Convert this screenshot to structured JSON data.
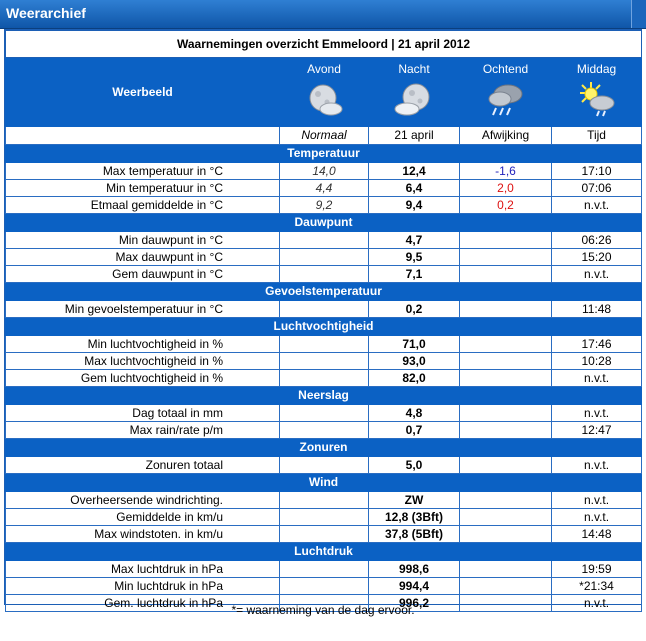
{
  "window": {
    "title": "Weerarchief"
  },
  "report": {
    "heading": "Waarnemingen overzicht Emmeloord | 21 april 2012"
  },
  "columns": {
    "weerbeeld": "Weerbeeld",
    "headers": [
      "Avond",
      "Nacht",
      "Ochtend",
      "Middag"
    ],
    "subheaders": [
      "Normaal",
      "21 april",
      "Afwijking",
      "Tijd"
    ],
    "icons": [
      "moon-cloud-icon",
      "moon-cloud-icon",
      "rain-cloud-icon",
      "sun-cloud-icon"
    ]
  },
  "sections": [
    {
      "title": "Temperatuur",
      "rows": [
        {
          "label": "Max temperatuur in °C",
          "normal": "14,0",
          "value": "12,4",
          "dev": "-1,6",
          "dev_type": "neg",
          "time": "17:10"
        },
        {
          "label": "Min temperatuur in °C",
          "normal": "4,4",
          "value": "6,4",
          "dev": "2,0",
          "dev_type": "pos",
          "time": "07:06"
        },
        {
          "label": "Etmaal gemiddelde in °C",
          "normal": "9,2",
          "value": "9,4",
          "dev": "0,2",
          "dev_type": "pos",
          "time": "n.v.t."
        }
      ]
    },
    {
      "title": "Dauwpunt",
      "rows": [
        {
          "label": "Min dauwpunt in °C",
          "normal": "",
          "value": "4,7",
          "dev": "",
          "dev_type": "",
          "time": "06:26"
        },
        {
          "label": "Max dauwpunt in °C",
          "normal": "",
          "value": "9,5",
          "dev": "",
          "dev_type": "",
          "time": "15:20"
        },
        {
          "label": "Gem dauwpunt in °C",
          "normal": "",
          "value": "7,1",
          "dev": "",
          "dev_type": "",
          "time": "n.v.t."
        }
      ]
    },
    {
      "title": "Gevoelstemperatuur",
      "rows": [
        {
          "label": "Min gevoelstemperatuur in °C",
          "normal": "",
          "value": "0,2",
          "dev": "",
          "dev_type": "",
          "time": "11:48"
        }
      ]
    },
    {
      "title": "Luchtvochtigheid",
      "rows": [
        {
          "label": "Min luchtvochtigheid in %",
          "normal": "",
          "value": "71,0",
          "dev": "",
          "dev_type": "",
          "time": "17:46"
        },
        {
          "label": "Max luchtvochtigheid in %",
          "normal": "",
          "value": "93,0",
          "dev": "",
          "dev_type": "",
          "time": "10:28"
        },
        {
          "label": "Gem luchtvochtigheid in %",
          "normal": "",
          "value": "82,0",
          "dev": "",
          "dev_type": "",
          "time": "n.v.t."
        }
      ]
    },
    {
      "title": "Neerslag",
      "rows": [
        {
          "label": "Dag totaal in mm",
          "normal": "",
          "value": "4,8",
          "dev": "",
          "dev_type": "",
          "time": "n.v.t."
        },
        {
          "label": "Max rain/rate p/m",
          "normal": "",
          "value": "0,7",
          "dev": "",
          "dev_type": "",
          "time": "12:47"
        }
      ]
    },
    {
      "title": "Zonuren",
      "rows": [
        {
          "label": "Zonuren totaal",
          "normal": "",
          "value": "5,0",
          "dev": "",
          "dev_type": "",
          "time": "n.v.t."
        }
      ]
    },
    {
      "title": "Wind",
      "rows": [
        {
          "label": "Overheersende windrichting.",
          "normal": "",
          "value": "ZW",
          "dev": "",
          "dev_type": "",
          "time": "n.v.t."
        },
        {
          "label": "Gemiddelde in km/u",
          "normal": "",
          "value": "12,8 (3Bft)",
          "dev": "",
          "dev_type": "",
          "time": "n.v.t."
        },
        {
          "label": "Max windstoten. in km/u",
          "normal": "",
          "value": "37,8 (5Bft)",
          "dev": "",
          "dev_type": "",
          "time": "14:48"
        }
      ]
    },
    {
      "title": "Luchtdruk",
      "rows": [
        {
          "label": "Max luchtdruk in hPa",
          "normal": "",
          "value": "998,6",
          "dev": "",
          "dev_type": "",
          "time": "19:59"
        },
        {
          "label": "Min luchtdruk in hPa",
          "normal": "",
          "value": "994,4",
          "dev": "",
          "dev_type": "",
          "time": "*21:34"
        },
        {
          "label": "Gem. luchtdruk in hPa",
          "normal": "",
          "value": "996,2",
          "dev": "",
          "dev_type": "",
          "time": "n.v.t."
        }
      ]
    }
  ],
  "footer": {
    "note": "*= waarneming van de dag ervoor."
  }
}
